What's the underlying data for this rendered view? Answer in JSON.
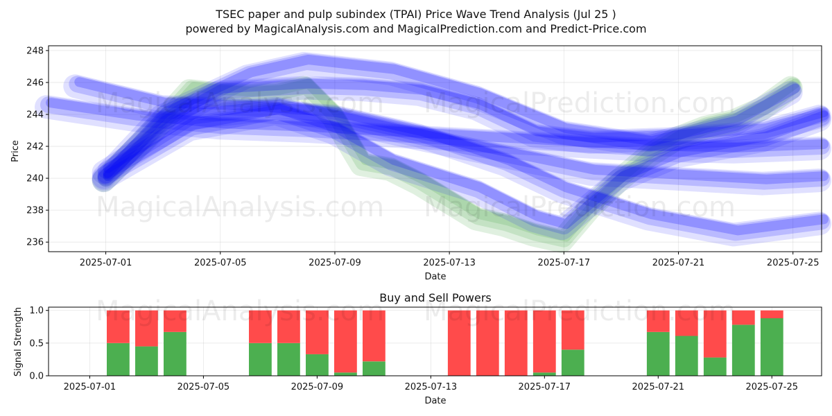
{
  "title": {
    "line1": "TSEC paper and pulp subindex (TPAI) Price Wave Trend Analysis (Jul 25 )",
    "line2": "powered by MagicalAnalysis.com and MagicalPrediction.com and Predict-Price.com"
  },
  "watermarks": {
    "left": "MagicalAnalysis.com",
    "right": "MagicalPrediction.com"
  },
  "colors": {
    "band_blue": "#0000ff",
    "band_green": "#008000",
    "buy": "#4caf50",
    "sell": "#ff4b4b"
  },
  "chart_data": [
    {
      "type": "area",
      "title": "",
      "xlabel": "Date",
      "ylabel": "Price",
      "ylim": [
        235.4,
        248.3
      ],
      "xlim": [
        "2025-06-29",
        "2025-07-26"
      ],
      "yticks": [
        236,
        238,
        240,
        242,
        244,
        246,
        248
      ],
      "xticks": [
        "2025-07-01",
        "2025-07-05",
        "2025-07-09",
        "2025-07-13",
        "2025-07-17",
        "2025-07-21",
        "2025-07-25"
      ],
      "grid": true,
      "series": [
        {
          "color": "green",
          "x": [
            "2025-07-01",
            "2025-07-02",
            "2025-07-03",
            "2025-07-04",
            "2025-07-05",
            "2025-07-06",
            "2025-07-07",
            "2025-07-08",
            "2025-07-09",
            "2025-07-10",
            "2025-07-11",
            "2025-07-12",
            "2025-07-13",
            "2025-07-14",
            "2025-07-15",
            "2025-07-16",
            "2025-07-17",
            "2025-07-18",
            "2025-07-19",
            "2025-07-20",
            "2025-07-21",
            "2025-07-22",
            "2025-07-23",
            "2025-07-24",
            "2025-07-25"
          ],
          "y": [
            240.0,
            241.8,
            243.6,
            245.6,
            245.4,
            245.3,
            245.4,
            245.8,
            244.0,
            241.0,
            240.7,
            239.8,
            238.7,
            237.6,
            237.2,
            236.6,
            236.2,
            238.3,
            240.0,
            241.5,
            242.6,
            243.3,
            243.7,
            244.5,
            245.8
          ]
        },
        {
          "color": "blue",
          "x": [
            "2025-06-29",
            "2025-07-02",
            "2025-07-05",
            "2025-07-08",
            "2025-07-11",
            "2025-07-14",
            "2025-07-17",
            "2025-07-20",
            "2025-07-23",
            "2025-07-26"
          ],
          "y": [
            244.6,
            243.8,
            243.3,
            243.1,
            242.8,
            242.5,
            242.2,
            241.9,
            241.8,
            242.0
          ]
        },
        {
          "color": "blue",
          "x": [
            "2025-06-30",
            "2025-07-03",
            "2025-07-06",
            "2025-07-09",
            "2025-07-12",
            "2025-07-15",
            "2025-07-17",
            "2025-07-20",
            "2025-07-23",
            "2025-07-26"
          ],
          "y": [
            245.9,
            244.6,
            244.4,
            244.0,
            242.8,
            241.0,
            239.3,
            237.6,
            236.6,
            237.3
          ]
        },
        {
          "color": "blue",
          "x": [
            "2025-07-01",
            "2025-07-03",
            "2025-07-05",
            "2025-07-08",
            "2025-07-10",
            "2025-07-12",
            "2025-07-14",
            "2025-07-16",
            "2025-07-18",
            "2025-07-21",
            "2025-07-24",
            "2025-07-26"
          ],
          "y": [
            240.0,
            243.5,
            245.5,
            245.8,
            245.7,
            245.4,
            244.5,
            242.8,
            242.4,
            242.6,
            243.0,
            244.0
          ]
        },
        {
          "color": "blue",
          "x": [
            "2025-07-01",
            "2025-07-04",
            "2025-07-07",
            "2025-07-09",
            "2025-07-11",
            "2025-07-14",
            "2025-07-16",
            "2025-07-17",
            "2025-07-19",
            "2025-07-21",
            "2025-07-24",
            "2025-07-26"
          ],
          "y": [
            240.1,
            243.2,
            244.2,
            243.0,
            241.0,
            239.3,
            237.5,
            237.0,
            240.0,
            241.5,
            242.5,
            243.8
          ]
        },
        {
          "color": "blue",
          "x": [
            "2025-07-01",
            "2025-07-04",
            "2025-07-07",
            "2025-07-09",
            "2025-07-12",
            "2025-07-15",
            "2025-07-18",
            "2025-07-21",
            "2025-07-24",
            "2025-07-26"
          ],
          "y": [
            240.5,
            243.9,
            244.5,
            243.8,
            242.6,
            241.5,
            240.4,
            240.1,
            239.8,
            240.0
          ]
        },
        {
          "color": "blue",
          "x": [
            "2025-07-01",
            "2025-07-03",
            "2025-07-06",
            "2025-07-08",
            "2025-07-11",
            "2025-07-14",
            "2025-07-17",
            "2025-07-20",
            "2025-07-23",
            "2025-07-25"
          ],
          "y": [
            240.2,
            244.0,
            246.5,
            247.3,
            246.7,
            245.2,
            243.0,
            242.2,
            243.5,
            245.5
          ]
        }
      ]
    },
    {
      "type": "bar",
      "title": "Buy and Sell Powers",
      "xlabel": "Date",
      "ylabel": "Signal Strength",
      "ylim": [
        0,
        1.05
      ],
      "xlim": [
        "2025-06-30",
        "2025-07-26"
      ],
      "yticks": [
        0.0,
        0.5,
        1.0
      ],
      "xticks": [
        "2025-07-01",
        "2025-07-05",
        "2025-07-09",
        "2025-07-13",
        "2025-07-17",
        "2025-07-21",
        "2025-07-25"
      ],
      "categories": [
        "2025-07-02",
        "2025-07-03",
        "2025-07-04",
        "2025-07-07",
        "2025-07-08",
        "2025-07-09",
        "2025-07-10",
        "2025-07-11",
        "2025-07-14",
        "2025-07-15",
        "2025-07-16",
        "2025-07-17",
        "2025-07-18",
        "2025-07-21",
        "2025-07-22",
        "2025-07-23",
        "2025-07-24",
        "2025-07-25"
      ],
      "series": [
        {
          "color": "green",
          "values": [
            0.5,
            0.45,
            0.67,
            0.5,
            0.5,
            0.33,
            0.05,
            0.22,
            0.0,
            0.0,
            0.0,
            0.05,
            0.4,
            0.67,
            0.61,
            0.28,
            0.78,
            0.88
          ]
        },
        {
          "color": "red",
          "values": [
            0.5,
            0.55,
            0.33,
            0.5,
            0.5,
            0.67,
            0.95,
            0.78,
            1.0,
            1.0,
            1.0,
            0.95,
            0.6,
            0.33,
            0.39,
            0.72,
            0.22,
            0.12
          ]
        }
      ]
    }
  ]
}
